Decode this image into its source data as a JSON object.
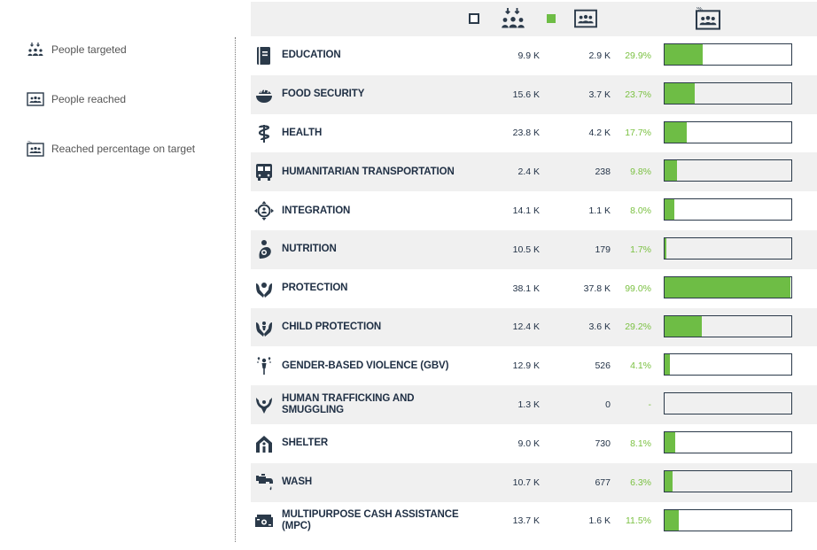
{
  "legend": [
    {
      "icon": "people-targeted-icon",
      "label": "People targeted"
    },
    {
      "icon": "people-reached-icon",
      "label": "People reached"
    },
    {
      "icon": "reached-percentage-icon",
      "label": "Reached percentage on target"
    }
  ],
  "colors": {
    "reached": "#6ebd45",
    "target": "#2b3a4a",
    "text": "#1f2f44",
    "percent": "#7bc142"
  },
  "chart_data": {
    "type": "table",
    "columns": [
      "sector",
      "people_targeted",
      "people_reached",
      "reached_percentage",
      "progress"
    ],
    "rows": [
      {
        "icon": "education-icon",
        "sector": "EDUCATION",
        "targeted": "9.9 K",
        "reached": "2.9 K",
        "pct_label": "29.9%",
        "pct": 29.9
      },
      {
        "icon": "food-security-icon",
        "sector": "FOOD SECURITY",
        "targeted": "15.6 K",
        "reached": "3.7 K",
        "pct_label": "23.7%",
        "pct": 23.7
      },
      {
        "icon": "health-icon",
        "sector": "HEALTH",
        "targeted": "23.8 K",
        "reached": "4.2 K",
        "pct_label": "17.7%",
        "pct": 17.7
      },
      {
        "icon": "bus-icon",
        "sector": "HUMANITARIAN TRANSPORTATION",
        "targeted": "2.4 K",
        "reached": "238",
        "pct_label": "9.8%",
        "pct": 9.8
      },
      {
        "icon": "integration-icon",
        "sector": "INTEGRATION",
        "targeted": "14.1 K",
        "reached": "1.1 K",
        "pct_label": "8.0%",
        "pct": 8.0
      },
      {
        "icon": "nutrition-icon",
        "sector": "NUTRITION",
        "targeted": "10.5 K",
        "reached": "179",
        "pct_label": "1.7%",
        "pct": 1.7
      },
      {
        "icon": "protection-icon",
        "sector": "PROTECTION",
        "targeted": "38.1 K",
        "reached": "37.8 K",
        "pct_label": "99.0%",
        "pct": 99.0
      },
      {
        "icon": "child-protection-icon",
        "sector": "CHILD PROTECTION",
        "targeted": "12.4 K",
        "reached": "3.6 K",
        "pct_label": "29.2%",
        "pct": 29.2
      },
      {
        "icon": "gbv-icon",
        "sector": "GENDER-BASED VIOLENCE (GBV)",
        "targeted": "12.9 K",
        "reached": "526",
        "pct_label": "4.1%",
        "pct": 4.1
      },
      {
        "icon": "trafficking-icon",
        "sector": "HUMAN TRAFFICKING AND SMUGGLING",
        "targeted": "1.3 K",
        "reached": "0",
        "pct_label": "-",
        "pct": 0
      },
      {
        "icon": "shelter-icon",
        "sector": "SHELTER",
        "targeted": "9.0 K",
        "reached": "730",
        "pct_label": "8.1%",
        "pct": 8.1
      },
      {
        "icon": "wash-icon",
        "sector": "WASH",
        "targeted": "10.7 K",
        "reached": "677",
        "pct_label": "6.3%",
        "pct": 6.3
      },
      {
        "icon": "cash-icon",
        "sector": "MULTIPURPOSE CASH ASSISTANCE (MPC)",
        "targeted": "13.7 K",
        "reached": "1.6 K",
        "pct_label": "11.5%",
        "pct": 11.5
      }
    ]
  }
}
